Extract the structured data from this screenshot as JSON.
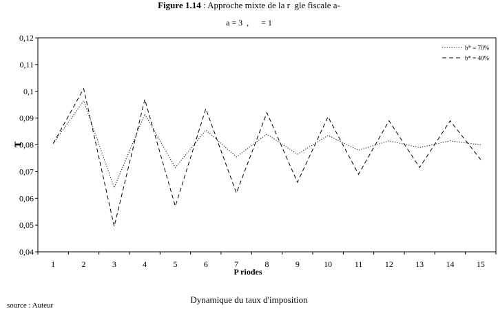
{
  "figure": {
    "number": "Figure 1.14",
    "title": " : Approche mixte de la r  gle fiscale a-",
    "params": "a = 3  ,      = 1",
    "caption": "Dynamique du taux d'imposition",
    "source": "source : Auteur"
  },
  "chart_data": {
    "type": "line",
    "xlabel": "P  riodes",
    "ylabel": "τ",
    "ylim": [
      0.04,
      0.12
    ],
    "yticks": [
      "0,04",
      "0,05",
      "0,06",
      "0,07",
      "0,08",
      "0,09",
      "0,1",
      "0,11",
      "0,12"
    ],
    "categories": [
      "1",
      "2",
      "3",
      "4",
      "5",
      "6",
      "7",
      "8",
      "9",
      "10",
      "11",
      "12",
      "13",
      "14",
      "15"
    ],
    "grid": false,
    "legend_position": "top-right",
    "series": [
      {
        "name": "b* = 70%",
        "style": "dotted",
        "color": "#000000",
        "values": [
          0.0805,
          0.0965,
          0.064,
          0.0915,
          0.0715,
          0.0855,
          0.0755,
          0.084,
          0.0765,
          0.0835,
          0.078,
          0.0815,
          0.079,
          0.0815,
          0.08
        ]
      },
      {
        "name": "b* = 40%",
        "style": "dashed",
        "color": "#000000",
        "values": [
          0.0805,
          0.101,
          0.0495,
          0.097,
          0.057,
          0.0935,
          0.062,
          0.092,
          0.066,
          0.0905,
          0.069,
          0.089,
          0.0715,
          0.089,
          0.0745
        ]
      }
    ]
  }
}
